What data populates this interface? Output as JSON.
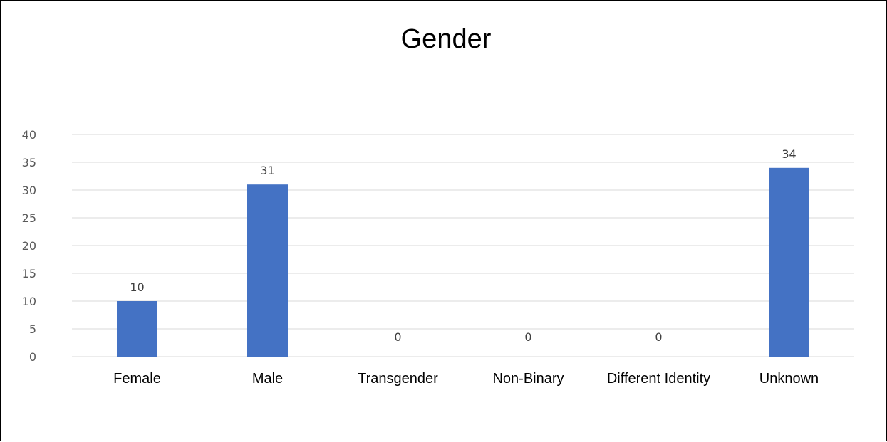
{
  "chart_data": {
    "type": "bar",
    "title": "Gender",
    "xlabel": "",
    "ylabel": "",
    "categories": [
      "Female",
      "Male",
      "Transgender",
      "Non-Binary",
      "Different Identity",
      "Unknown"
    ],
    "values": [
      10,
      31,
      0,
      0,
      0,
      34
    ],
    "ylim": [
      0,
      40
    ],
    "yticks": [
      0,
      5,
      10,
      15,
      20,
      25,
      30,
      35,
      40
    ],
    "grid": true,
    "legend": "none",
    "bar_color": "#4472C4"
  }
}
